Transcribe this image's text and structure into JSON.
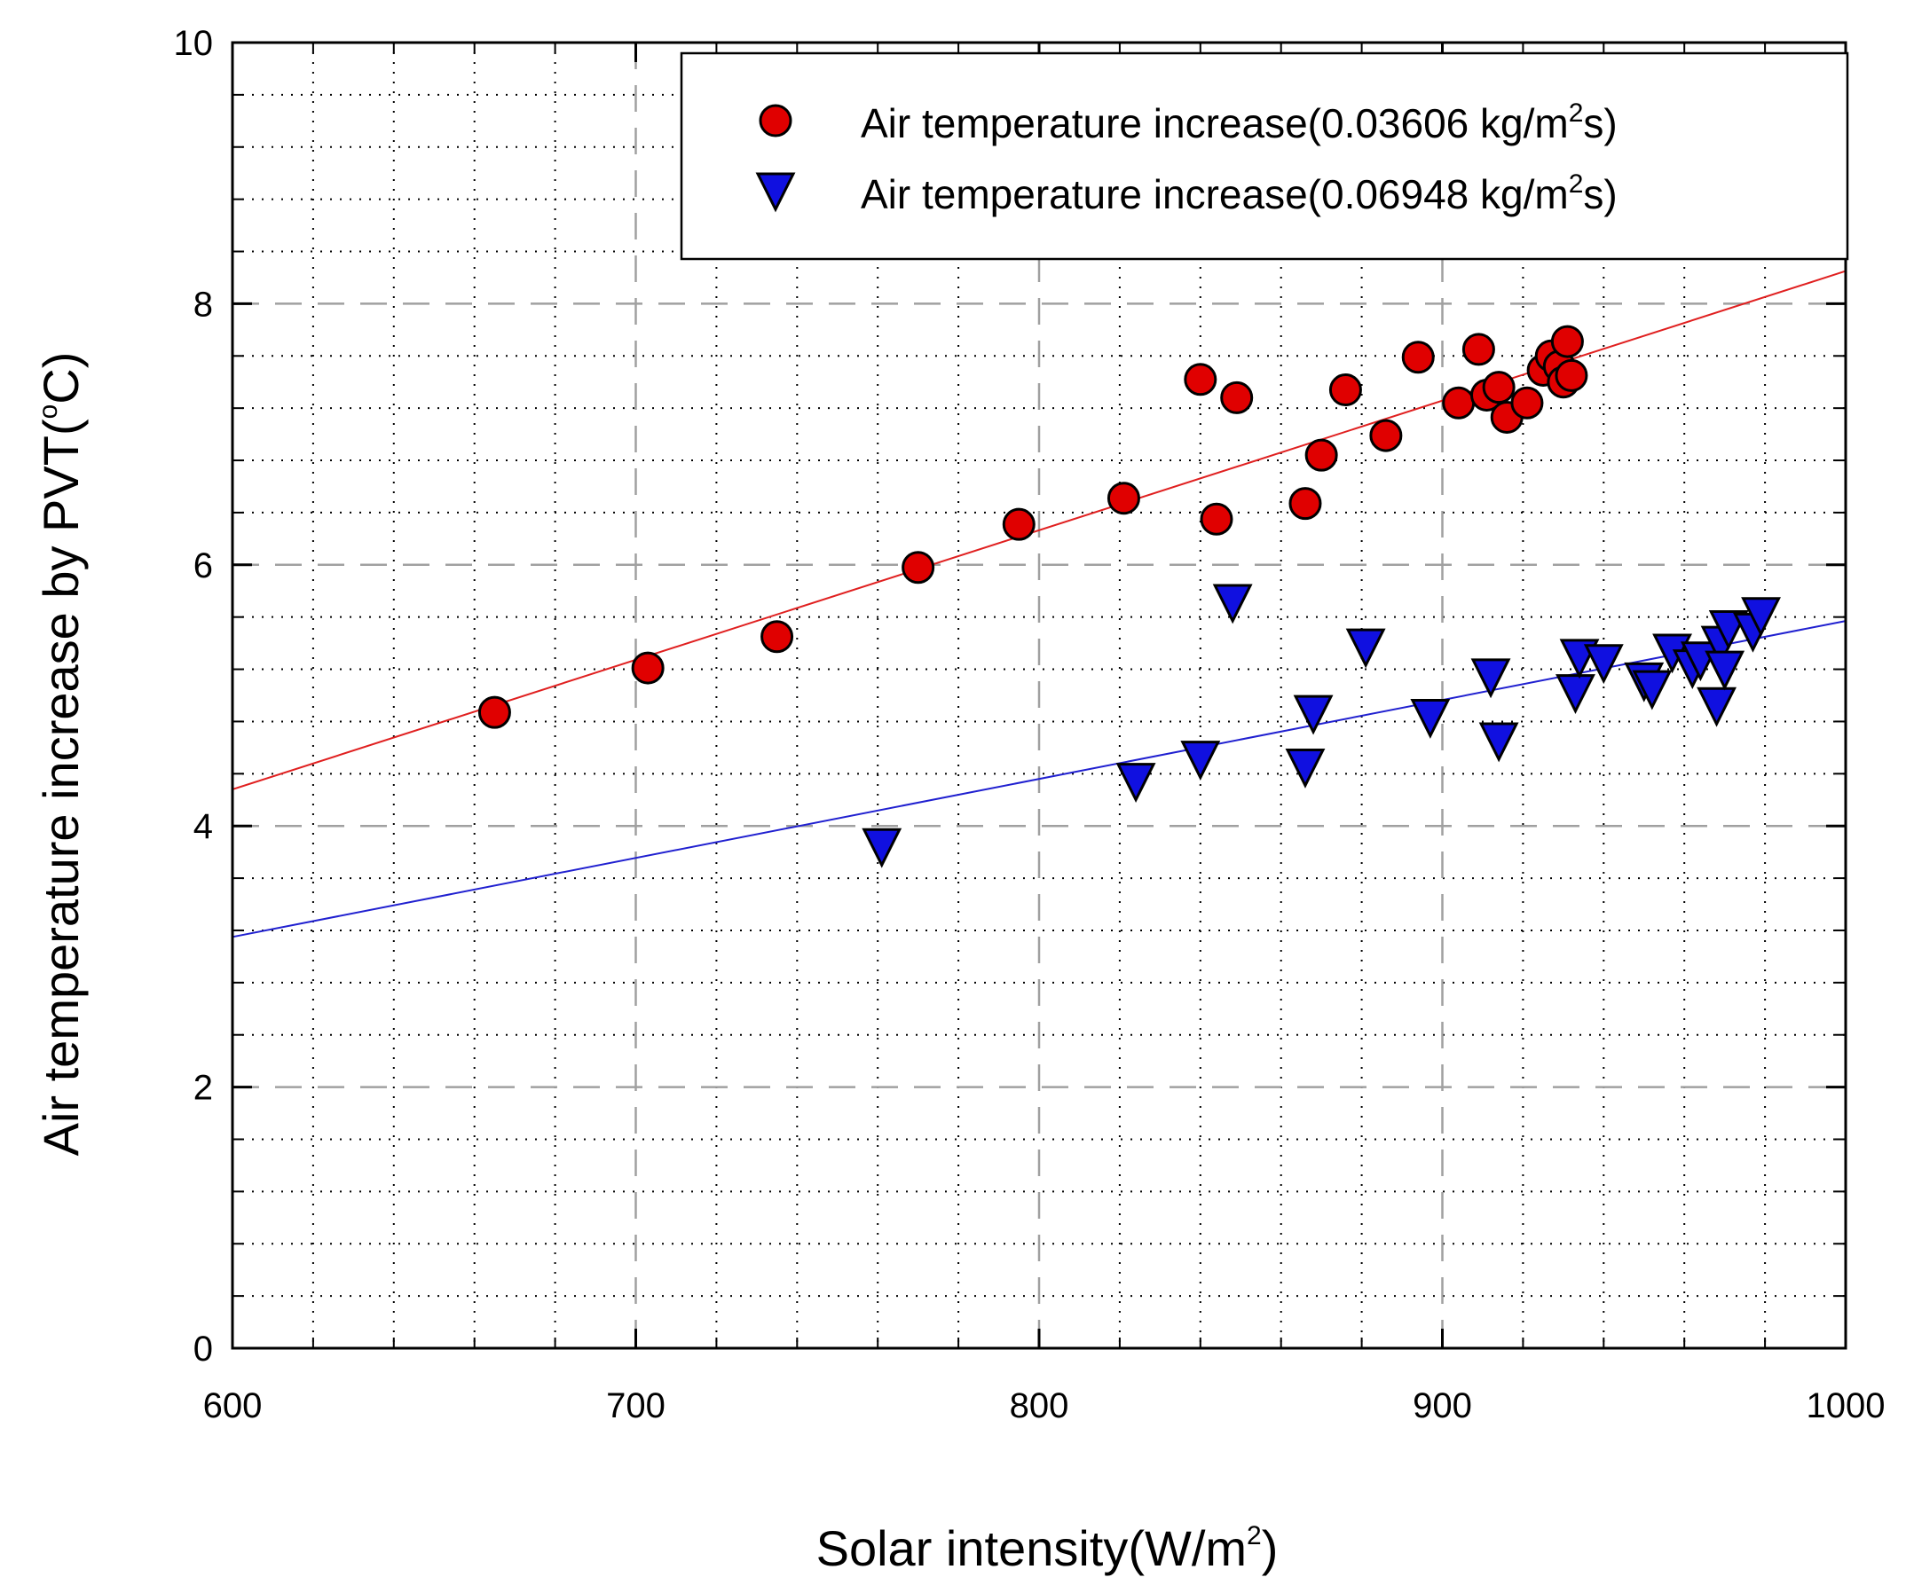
{
  "chart_data": {
    "type": "scatter",
    "title": "",
    "xlabel": "Solar intensity(W/m",
    "xlabel_sup": "2",
    "xlabel_suffix": ")",
    "ylabel": "Air temperature increase by PVT(",
    "ylabel_sup": "o",
    "ylabel_suffix": "C)",
    "xlim": [
      600,
      1000
    ],
    "ylim": [
      0,
      10
    ],
    "x_major_ticks": [
      600,
      700,
      800,
      900,
      1000
    ],
    "y_major_ticks": [
      0,
      2,
      4,
      6,
      8,
      10
    ],
    "x_tick_labels": [
      "600",
      "700",
      "800",
      "900",
      "1000"
    ],
    "y_tick_labels": [
      "0",
      "2",
      "4",
      "6",
      "8",
      "10"
    ],
    "x_minor_step": 20,
    "y_minor_step": 0.4,
    "grid": true,
    "legend_position": "top-right",
    "series": [
      {
        "name": "Air temperature increase(0.03606 kg/m",
        "name_sup": "2",
        "name_suffix": "s)",
        "marker": "circle",
        "color": "#e00000",
        "line_color": "#e02020",
        "fit": [
          [
            600,
            4.28
          ],
          [
            1000,
            8.25
          ]
        ],
        "x": [
          665,
          703,
          735,
          770,
          795,
          821,
          840,
          844,
          849,
          866,
          870,
          876,
          886,
          894,
          904,
          909,
          911,
          914,
          916,
          921,
          925,
          927,
          929,
          930,
          931,
          932
        ],
        "y": [
          4.87,
          5.21,
          5.45,
          5.98,
          6.31,
          6.51,
          7.42,
          6.35,
          7.28,
          6.47,
          6.84,
          7.34,
          6.99,
          7.59,
          7.24,
          7.65,
          7.3,
          7.36,
          7.13,
          7.24,
          7.49,
          7.6,
          7.52,
          7.4,
          7.71,
          7.45
        ]
      },
      {
        "name": "Air temperature increase(0.06948 kg/m",
        "name_sup": "2",
        "name_suffix": "s)",
        "marker": "triangle-down",
        "color": "#1010e0",
        "line_color": "#2020d0",
        "fit": [
          [
            600,
            3.15
          ],
          [
            1000,
            5.57
          ]
        ],
        "x": [
          761,
          824,
          840,
          848,
          866,
          868,
          881,
          897,
          912,
          914,
          933,
          934,
          940,
          950,
          952,
          957,
          962,
          964,
          968,
          969,
          970,
          971,
          977,
          979
        ],
        "y": [
          3.85,
          4.35,
          4.52,
          5.72,
          4.46,
          4.87,
          5.38,
          4.84,
          5.15,
          4.66,
          5.03,
          5.3,
          5.26,
          5.12,
          5.06,
          5.34,
          5.22,
          5.28,
          4.93,
          5.4,
          5.21,
          5.52,
          5.5,
          5.62
        ]
      }
    ]
  }
}
